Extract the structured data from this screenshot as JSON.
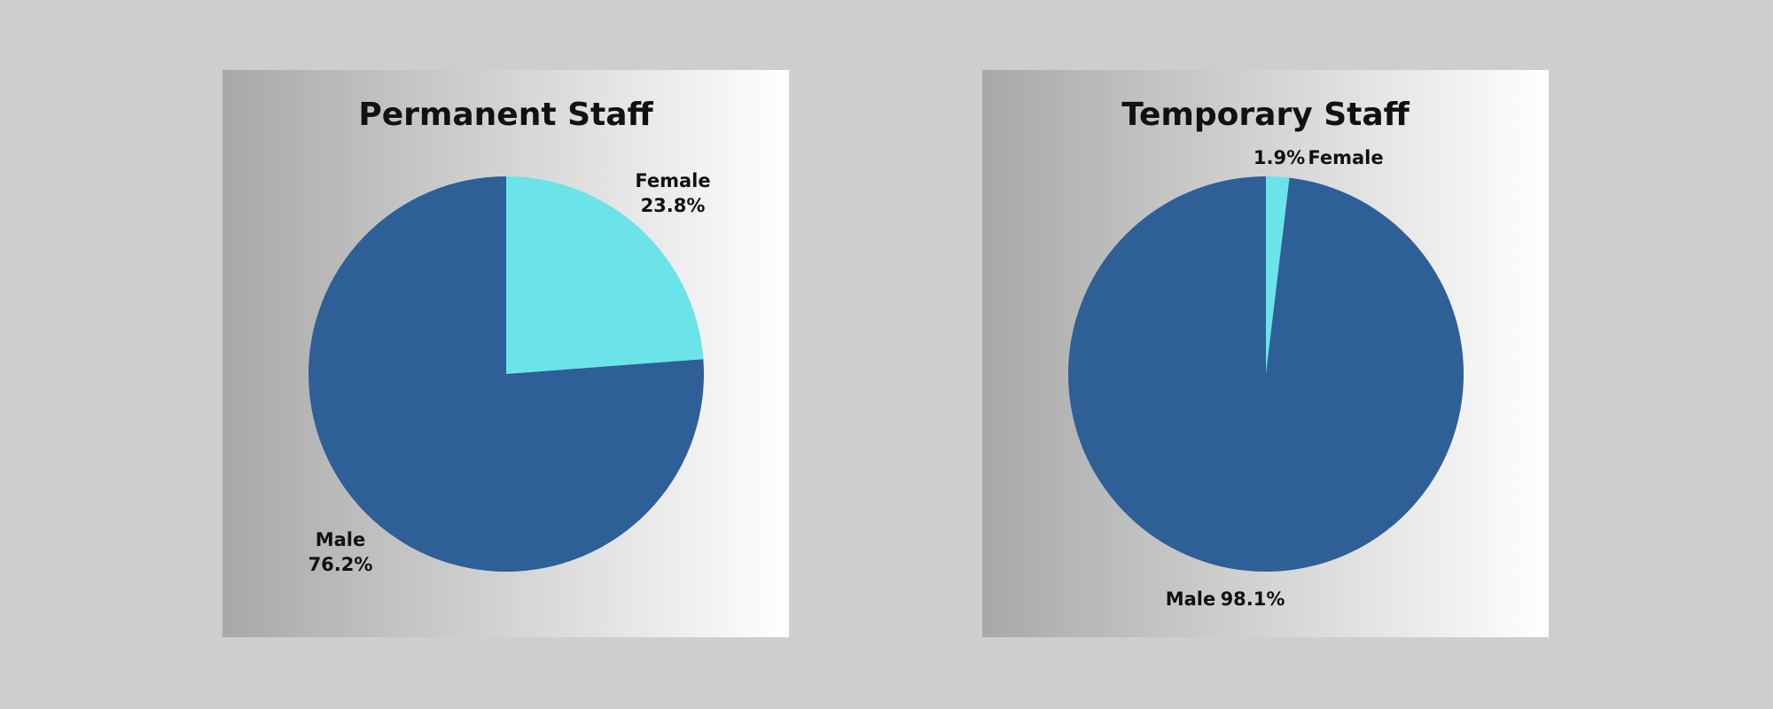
{
  "chart_data": [
    {
      "type": "pie",
      "title": "Permanent Staff",
      "categories": [
        "Female",
        "Male"
      ],
      "values": [
        23.8,
        76.2
      ],
      "value_labels": [
        "23.8%",
        "76.2%"
      ],
      "colors": [
        "#6ae4e8",
        "#2e5f97"
      ]
    },
    {
      "type": "pie",
      "title": "Temporary Staff",
      "categories": [
        "Female",
        "Male"
      ],
      "values": [
        1.9,
        98.1
      ],
      "value_labels": [
        "1.9%",
        "98.1%"
      ],
      "colors": [
        "#6ae4e8",
        "#2e5f97"
      ]
    }
  ]
}
